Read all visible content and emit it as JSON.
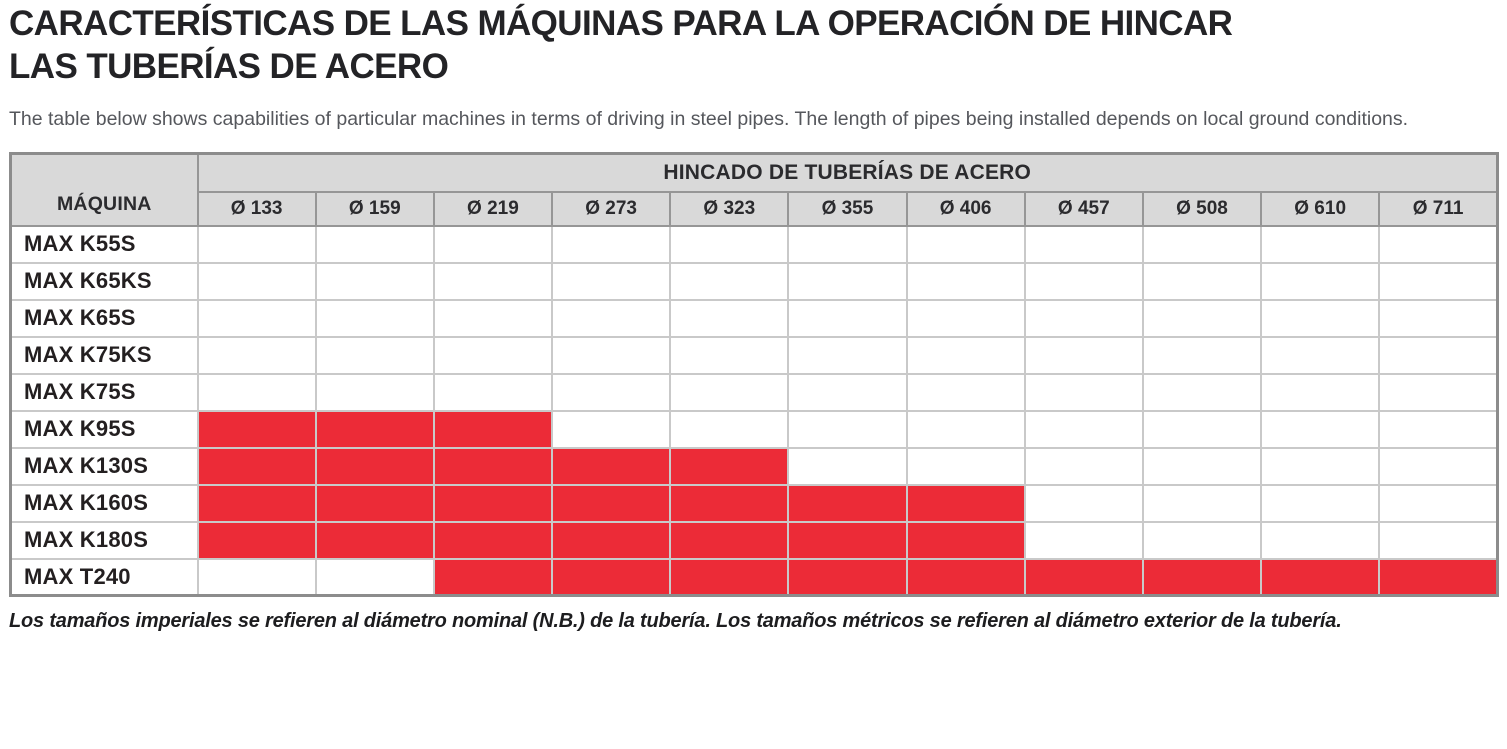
{
  "header": {
    "title_lines": [
      "CARACTERÍSTICAS DE LAS MÁQUINAS PARA LA OPERACIÓN DE HINCAR",
      "LAS TUBERÍAS DE ACERO"
    ],
    "intro": "The table below shows capabilities of particular machines in terms of driving in steel pipes. The length of pipes being installed depends on local ground conditions."
  },
  "table": {
    "machine_column_header": "MÁQUINA",
    "group_header": "HINCADO DE TUBERÍAS DE ACERO",
    "diameter_headers": [
      "Ø 133",
      "Ø 159",
      "Ø 219",
      "Ø 273",
      "Ø 323",
      "Ø 355",
      "Ø 406",
      "Ø 457",
      "Ø 508",
      "Ø 610",
      "Ø 711"
    ],
    "rows": [
      {
        "machine": "MAX K55S",
        "capabilities": [
          0,
          0,
          0,
          0,
          0,
          0,
          0,
          0,
          0,
          0,
          0
        ]
      },
      {
        "machine": "MAX K65KS",
        "capabilities": [
          0,
          0,
          0,
          0,
          0,
          0,
          0,
          0,
          0,
          0,
          0
        ]
      },
      {
        "machine": "MAX K65S",
        "capabilities": [
          0,
          0,
          0,
          0,
          0,
          0,
          0,
          0,
          0,
          0,
          0
        ]
      },
      {
        "machine": "MAX K75KS",
        "capabilities": [
          0,
          0,
          0,
          0,
          0,
          0,
          0,
          0,
          0,
          0,
          0
        ]
      },
      {
        "machine": "MAX K75S",
        "capabilities": [
          0,
          0,
          0,
          0,
          0,
          0,
          0,
          0,
          0,
          0,
          0
        ]
      },
      {
        "machine": "MAX K95S",
        "capabilities": [
          1,
          1,
          1,
          0,
          0,
          0,
          0,
          0,
          0,
          0,
          0
        ]
      },
      {
        "machine": "MAX K130S",
        "capabilities": [
          1,
          1,
          1,
          1,
          1,
          0,
          0,
          0,
          0,
          0,
          0
        ]
      },
      {
        "machine": "MAX K160S",
        "capabilities": [
          1,
          1,
          1,
          1,
          1,
          1,
          1,
          0,
          0,
          0,
          0
        ]
      },
      {
        "machine": "MAX K180S",
        "capabilities": [
          1,
          1,
          1,
          1,
          1,
          1,
          1,
          0,
          0,
          0,
          0
        ]
      },
      {
        "machine": "MAX T240",
        "capabilities": [
          0,
          0,
          1,
          1,
          1,
          1,
          1,
          1,
          1,
          1,
          1
        ]
      }
    ]
  },
  "footnote": "Los tamaños imperiales se refieren al diámetro nominal (N.B.) de la tubería. Los tamaños métricos se refieren al diámetro exterior de la tubería.",
  "colors": {
    "capability_fill": "#ec2b37",
    "header_bg": "#d9d9d9"
  }
}
